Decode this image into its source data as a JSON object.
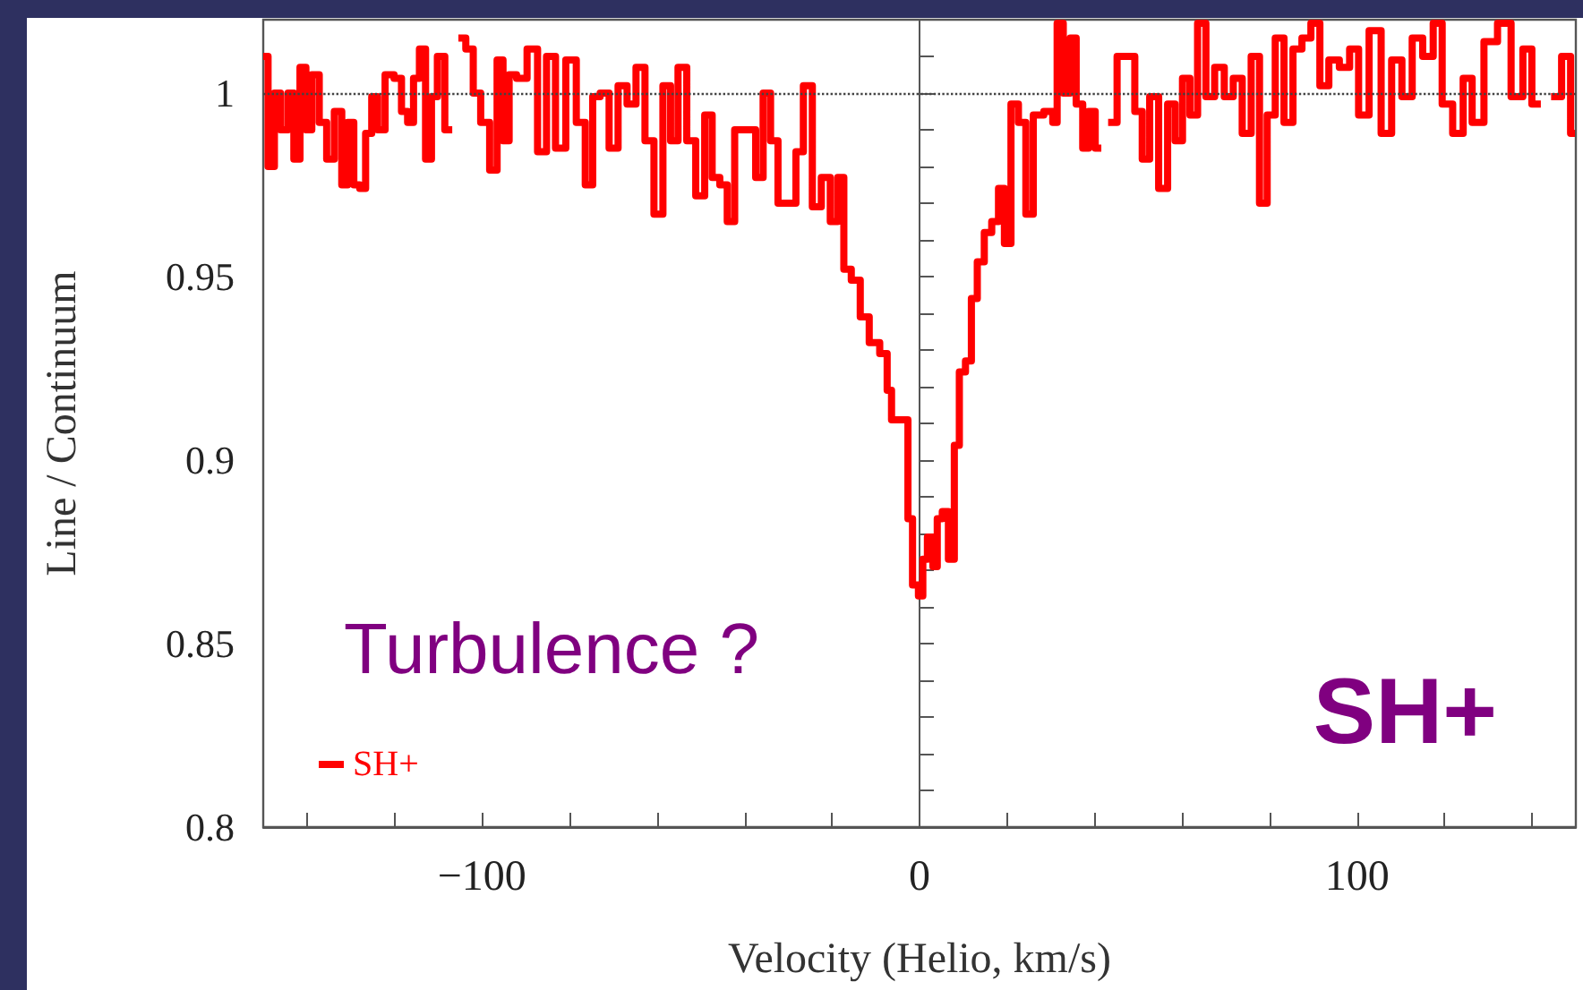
{
  "chart_data": {
    "type": "step",
    "xlabel": "Velocity (Helio, km/s)",
    "ylabel": "Line / Continuum",
    "annotations": [
      "Turbulence ?",
      "SH+"
    ],
    "xlim": [
      -150,
      150
    ],
    "ylim": [
      0.8,
      1.02
    ],
    "xticks": [
      {
        "value": -140,
        "label": null
      },
      {
        "value": -120,
        "label": null
      },
      {
        "value": -100,
        "label": "−100"
      },
      {
        "value": -80,
        "label": null
      },
      {
        "value": -60,
        "label": null
      },
      {
        "value": -40,
        "label": null
      },
      {
        "value": -20,
        "label": null
      },
      0,
      {
        "value": 20,
        "label": null
      },
      {
        "value": 40,
        "label": null
      },
      {
        "value": 60,
        "label": null
      },
      {
        "value": 80,
        "label": null
      },
      100,
      {
        "value": 120,
        "label": null
      },
      {
        "value": 140,
        "label": null
      }
    ],
    "yticks": [
      0.8,
      {
        "value": 0.81,
        "label": null
      },
      {
        "value": 0.82,
        "label": null
      },
      {
        "value": 0.83,
        "label": null
      },
      {
        "value": 0.84,
        "label": null
      },
      0.85,
      {
        "value": 0.86,
        "label": null
      },
      {
        "value": 0.87,
        "label": null
      },
      {
        "value": 0.88,
        "label": null
      },
      {
        "value": 0.89,
        "label": null
      },
      0.9,
      {
        "value": 0.91,
        "label": null
      },
      {
        "value": 0.92,
        "label": null
      },
      {
        "value": 0.93,
        "label": null
      },
      {
        "value": 0.94,
        "label": null
      },
      0.95,
      {
        "value": 0.96,
        "label": null
      },
      {
        "value": 0.97,
        "label": null
      },
      {
        "value": 0.98,
        "label": null
      },
      {
        "value": 0.99,
        "label": null
      },
      1,
      {
        "value": 1.01,
        "label": null
      }
    ],
    "ref_lines": [
      {
        "axis": "y",
        "value": 1,
        "color": "#444444",
        "line_style": "dotted"
      }
    ],
    "legend": "bottom left",
    "grid": false,
    "marker": "none",
    "line_style": "solid",
    "series": [
      {
        "name": "SH+",
        "color": "#ff0000",
        "x": [
          -150,
          -147.8,
          -147.1,
          -145.0,
          -143.7,
          -142.3,
          -140.9,
          -139.6,
          -138.2,
          -136.2,
          -134.8,
          -132.7,
          -131.4,
          -130.0,
          -128.6,
          -127.3,
          -125.9,
          -124.5,
          -123.2,
          -121.1,
          -119.1,
          -117.7,
          -116.3,
          -115.0,
          -113.6,
          -112.2,
          -110.9,
          -109.5,
          -107.5,
          -106.1,
          -104.7,
          -102.7,
          -101.3,
          -99.3,
          -97.2,
          -95.9,
          -94.5,
          -93.1,
          -91.1,
          -88.3,
          -86.3,
          -84.2,
          -82.2,
          -79.5,
          -77.4,
          -75.4,
          -74.0,
          -72.0,
          -69.9,
          -67.9,
          -65.8,
          -63.8,
          -61.7,
          -59.7,
          -57.6,
          -56.2,
          -54.2,
          -52.2,
          -50.1,
          -48.1,
          -46.7,
          -44.6,
          -43.3,
          -41.2,
          -38.5,
          -36.4,
          -35.1,
          -33.0,
          -31.7,
          -28.9,
          -27.6,
          -25.5,
          -23.5,
          -21.4,
          -19.4,
          -18.0,
          -16.6,
          -14.6,
          -12.5,
          -10.5,
          -7.7,
          -7.1,
          -5.7,
          -3.0,
          -2.3,
          -0.9,
          0.4,
          1.1,
          2.5,
          3.6,
          4.5,
          5.9,
          7.3,
          8.6,
          9.6,
          11.4,
          12.3,
          14.1,
          15.5,
          17.5,
          18.6,
          20.2,
          21.6,
          23.6,
          25.0,
          27.0,
          29.8,
          31.1,
          31.8,
          33.9,
          35.0,
          36.6,
          38.0,
          39.3,
          41.0,
          42.1,
          44.1,
          46.2,
          48.2,
          50.2,
          51.6,
          53.6,
          55.7,
          57.7,
          59.1,
          61.1,
          62.5,
          64.6,
          66.3,
          68.6,
          70.7,
          72.7,
          74.8,
          76.8,
          78.6,
          80.3,
          82.3,
          84.3,
          86.4,
          88.4,
          90.5,
          92.5,
          94.6,
          97.3,
          99.3,
          101.4,
          104.1,
          106.9,
          108.9,
          111.6,
          113.6,
          116.4,
          118.4,
          120.5,
          123.2,
          125.3,
          127.3,
          130.7,
          133.5,
          136.9,
          138.9,
          141.0,
          143.0,
          145.7,
          147.8,
          149.8
        ],
        "values": [
          1.01,
          0.98,
          1.0,
          0.99,
          1.0,
          0.982,
          1.007,
          0.99,
          1.005,
          0.992,
          0.982,
          0.995,
          0.975,
          0.992,
          0.975,
          0.974,
          0.989,
          0.999,
          0.99,
          1.005,
          1.004,
          0.995,
          0.992,
          1.004,
          1.012,
          0.982,
          0.999,
          1.01,
          0.99,
          null,
          1.015,
          1.012,
          1.0,
          0.992,
          0.979,
          1.009,
          0.987,
          1.005,
          1.004,
          1.012,
          0.984,
          1.01,
          0.985,
          1.009,
          0.992,
          0.975,
          0.999,
          1.0,
          0.985,
          1.002,
          0.997,
          1.007,
          0.987,
          0.967,
          1.002,
          0.987,
          1.007,
          0.987,
          0.972,
          0.994,
          0.977,
          0.975,
          0.965,
          0.99,
          0.99,
          0.977,
          1.0,
          0.987,
          0.97,
          0.97,
          0.984,
          1.002,
          0.969,
          0.977,
          0.965,
          0.977,
          0.952,
          0.949,
          0.939,
          0.932,
          0.929,
          0.919,
          0.911,
          0.911,
          0.884,
          0.866,
          0.863,
          0.873,
          0.879,
          0.871,
          0.884,
          0.886,
          0.873,
          0.904,
          0.924,
          0.927,
          0.944,
          0.954,
          0.962,
          0.965,
          0.974,
          0.959,
          0.997,
          0.992,
          0.967,
          0.994,
          0.995,
          0.992,
          1.019,
          1.0,
          1.015,
          0.997,
          0.985,
          0.995,
          0.985,
          null,
          0.992,
          1.01,
          1.01,
          0.995,
          0.982,
          0.999,
          0.974,
          0.997,
          0.987,
          1.004,
          0.994,
          1.019,
          0.999,
          1.007,
          0.999,
          1.004,
          0.989,
          1.01,
          0.97,
          0.994,
          1.015,
          0.992,
          1.012,
          1.015,
          1.019,
          1.002,
          1.009,
          1.007,
          1.012,
          0.994,
          1.017,
          0.989,
          1.009,
          0.999,
          1.015,
          1.01,
          1.019,
          0.997,
          0.989,
          1.004,
          0.992,
          1.014,
          1.019,
          0.999,
          1.012,
          0.997,
          null,
          0.999,
          1.01,
          0.989
        ]
      }
    ]
  }
}
